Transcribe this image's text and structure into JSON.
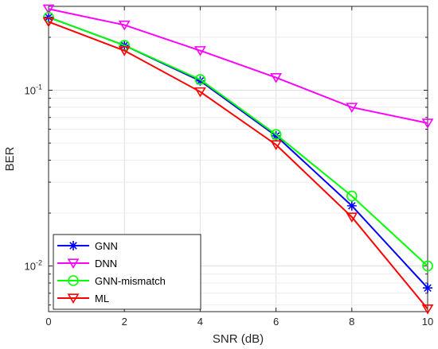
{
  "chart_data": {
    "type": "line",
    "xlabel": "SNR (dB)",
    "ylabel": "BER",
    "x": [
      0,
      2,
      4,
      6,
      8,
      10
    ],
    "xlim": [
      0,
      10
    ],
    "ylim": [
      0.0055,
      0.3
    ],
    "yscale": "log",
    "x_ticks": [
      "0",
      "2",
      "4",
      "6",
      "8",
      "10"
    ],
    "y_ticks": [
      {
        "base": "10",
        "exp": "-2",
        "value": 0.01
      },
      {
        "base": "10",
        "exp": "-1",
        "value": 0.1
      }
    ],
    "grid": true,
    "legend_position": "bottom-left",
    "series": [
      {
        "name": "GNN",
        "color": "#0000ff",
        "marker": "asterisk",
        "values": [
          0.26,
          0.18,
          0.113,
          0.055,
          0.022,
          0.0075
        ]
      },
      {
        "name": "DNN",
        "color": "#ff00ff",
        "marker": "triangle-down",
        "values": [
          0.29,
          0.235,
          0.168,
          0.118,
          0.08,
          0.065
        ]
      },
      {
        "name": "GNN-mismatch",
        "color": "#00ff00",
        "marker": "circle",
        "values": [
          0.26,
          0.18,
          0.115,
          0.056,
          0.025,
          0.01
        ]
      },
      {
        "name": "ML",
        "color": "#ff0000",
        "marker": "triangle-down",
        "values": [
          0.245,
          0.168,
          0.098,
          0.049,
          0.019,
          0.0057
        ]
      }
    ]
  }
}
